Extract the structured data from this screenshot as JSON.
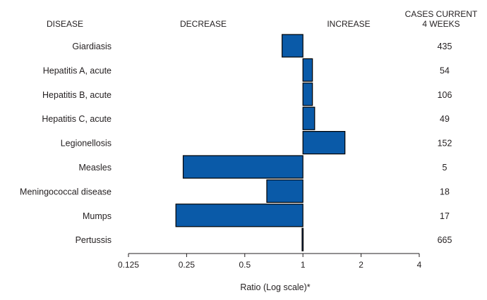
{
  "chart_data": {
    "type": "bar",
    "orientation": "horizontal",
    "x_scale": "log2",
    "baseline": 1,
    "xlim": [
      0.125,
      4
    ],
    "xticks": [
      "0.125",
      "0.25",
      "0.5",
      "1",
      "2",
      "4"
    ],
    "xlabel": "Ratio (Log scale)*",
    "headers": {
      "disease": "DISEASE",
      "decrease": "DECREASE",
      "increase": "INCREASE",
      "cases_line1": "CASES CURRENT",
      "cases_line2": "4 WEEKS"
    },
    "categories": [
      "Giardiasis",
      "Hepatitis A, acute",
      "Hepatitis B, acute",
      "Hepatitis C, acute",
      "Legionellosis",
      "Measles",
      "Meningococcal disease",
      "Mumps",
      "Pertussis"
    ],
    "values": [
      0.78,
      1.12,
      1.12,
      1.15,
      1.65,
      0.24,
      0.65,
      0.22,
      0.99
    ],
    "cases": [
      "435",
      "54",
      "106",
      "49",
      "152",
      "5",
      "18",
      "17",
      "665"
    ],
    "bar_color": "#0a5aa8",
    "bar_edge_color": "#000000"
  }
}
